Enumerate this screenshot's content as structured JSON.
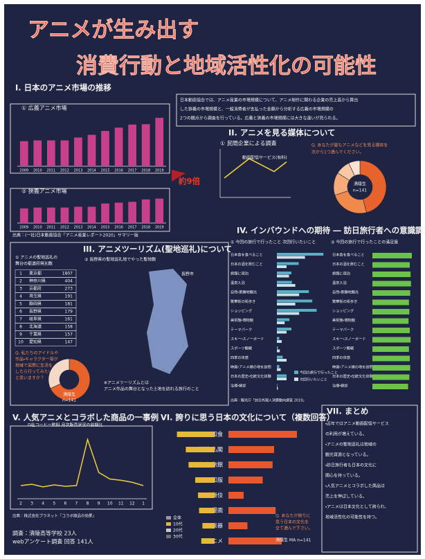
{
  "title": [
    "アニメが生み出す",
    "消費行動と地域活性化の可能性"
  ],
  "s1": {
    "heading": "I. 日本のアニメ市場の推移",
    "intro": [
      "日本動画協会では、アニメ産業の市場規模について、アニメ制作に関わる企業の売上高から算出",
      "した狭義の市場規模と、一般消費者が支払った金額から分析する広義の市場規模の",
      "2つの観点から調査を行っている。広義と狭義の市場規模には大きな違いが見られる。"
    ],
    "note": "約9倍",
    "source": "出典：(一社)日本動画協会「アニメ産業レポート2020」サマリー版",
    "years": [
      "2009",
      "2010",
      "2011",
      "2012",
      "2013",
      "2014",
      "2015",
      "2016",
      "2017",
      "2018",
      "2019"
    ],
    "broad": {
      "title": "① 広義アニメ市場",
      "values": [
        13000,
        13400,
        13400,
        13400,
        14900,
        16300,
        18300,
        20000,
        21600,
        21800,
        25100
      ],
      "ylim": [
        0,
        28000
      ],
      "color": "#c9408a"
    },
    "narrow": {
      "title": "② 狭義アニメ市場",
      "values": [
        1800,
        1900,
        1900,
        1900,
        2000,
        2000,
        2400,
        2500,
        2600,
        2900,
        3000
      ],
      "ylim": [
        0,
        3400
      ],
      "color": "#c9408a"
    }
  },
  "s2": {
    "heading": "II. アニメを見る媒体について",
    "survey": "① 民間企業による調査",
    "series_name": "動画配信サービス(有料)",
    "line": [
      12,
      18,
      24,
      20,
      16,
      22
    ],
    "line_ylim": [
      0,
      30
    ],
    "question": [
      "Q. あなたが最もアニメなどを見る媒体を",
      "次から1つ選んでください。"
    ],
    "pie_label": [
      "清陵生",
      "n=141"
    ],
    "pie": [
      46,
      24,
      14,
      9,
      7
    ]
  },
  "s3": {
    "heading": "III. アニメツーリズム(聖地巡礼)について",
    "table_title": [
      "① アニメの聖地巡礼の",
      "舞台の都道府県別数"
    ],
    "table": [
      [
        "1",
        "東京都",
        "1807"
      ],
      [
        "2",
        "神奈川県",
        "404"
      ],
      [
        "3",
        "京都府",
        "273"
      ],
      [
        "4",
        "埼玉県",
        "191"
      ],
      [
        "5",
        "静岡県",
        "181"
      ],
      [
        "6",
        "長野県",
        "179"
      ],
      [
        "7",
        "岐阜県",
        "161"
      ],
      [
        "8",
        "北海道",
        "158"
      ],
      [
        "9",
        "千葉県",
        "157"
      ],
      [
        "10",
        "愛知県",
        "147"
      ]
    ],
    "map_title": "② 長野県の聖地巡礼地でやった聖地数",
    "map_place": "長野市",
    "question": [
      "Q. 私たちのアイドルや",
      "作品・キャラクター等が",
      "地域で実際に生活を",
      "したら行ってみたい",
      "と思いますか？"
    ],
    "pie_label": [
      "清陵生",
      "n=141"
    ],
    "pie": [
      68,
      32
    ],
    "footnote": [
      "※アニメツーリズムとは",
      "アニメ作品の舞台となった土地を訪れる旅行のこと"
    ]
  },
  "s4": {
    "heading": "IV. インバウンドへの期待 ― 訪日旅行者への意識調査",
    "chart1_title": "① 今回の旅行で行ったこと 次回行いたいこと",
    "chart2_title": "② 今回の旅行で行ったことの満足度",
    "categories": [
      "日本食を食べること",
      "日本の酒を飲むこと",
      "旅館に宿泊",
      "温泉入浴",
      "自然・景勝地観光",
      "繁華街の街歩き",
      "ショッピング",
      "美術館・博物館",
      "テーマパーク",
      "スキー・スノーボード",
      "スポーツ観戦",
      "四季の体感",
      "映画・アニメ縁の地を訪問",
      "日本の歴史・伝統文化体験",
      "治療・健診"
    ],
    "series": [
      {
        "name": "今回の旅行で行ったこと",
        "color": "#5aaec6",
        "values": [
          96,
          45,
          30,
          31,
          66,
          73,
          82,
          26,
          30,
          5,
          2,
          12,
          5,
          20,
          1
        ]
      },
      {
        "name": "次回行いたいこと",
        "color": "#c8e2ea",
        "values": [
          58,
          20,
          25,
          38,
          46,
          38,
          46,
          16,
          20,
          10,
          6,
          20,
          8,
          20,
          2
        ]
      }
    ],
    "xlim": [
      0,
      100
    ],
    "satisfaction": [
      95,
      90,
      92,
      93,
      91,
      88,
      89,
      87,
      90,
      92,
      88,
      90,
      91,
      89,
      86
    ],
    "sat_color": "#6cc24a",
    "source": "出典：観光庁「訪日外国人消費動向調査 2019」"
  },
  "s5": {
    "heading": "V. 人気アニメとコラボした商品の一事例",
    "subtitle": "D社コーヒー飲料 月次販売状況の前期比",
    "months": [
      "2",
      "3",
      "4",
      "5",
      "6",
      "7",
      "8",
      "9",
      "10",
      "11",
      "12",
      "1"
    ],
    "values": [
      100,
      102,
      98,
      101,
      99,
      100,
      170,
      120,
      110,
      108,
      105,
      100
    ],
    "ylim": [
      80,
      180
    ],
    "source": "出典：株式会社プラネット「コラボ商品の効果」",
    "footer": [
      "調査：清陵高等学校 23人",
      "webアンケート調査 回答 141人"
    ]
  },
  "s6": {
    "heading": "VI. 誇りに思う日本の文化について（複数回答）",
    "categories": [
      "和食",
      "神社・仏閣",
      "温泉・旅館",
      "和服",
      "歌舞伎",
      "漫画",
      "和楽器",
      "アニメ"
    ],
    "public": [
      68,
      52,
      47,
      35,
      30,
      28,
      22,
      24
    ],
    "public_color": "#e6b83a",
    "students": [
      90,
      60,
      58,
      45,
      20,
      62,
      25,
      70
    ],
    "students_color": "#e8582c",
    "xlim": [
      0,
      100
    ],
    "legend": [
      "全体",
      "10代",
      "20代",
      "30代"
    ],
    "question": [
      "Q. あなたが誇りに",
      "思う日本の文化を",
      "全て選んで下さい。"
    ],
    "sample": "清陵生 MA n=141"
  },
  "s7": {
    "heading": "VII. まとめ",
    "lines": [
      "・近年ではアニメ動画配信サービス",
      "の利用が増えている。",
      "・アニメの聖地巡礼は地域の",
      "観光資源となっている。",
      "・訪日旅行者も日本の文化に",
      "関心を持っている。",
      "・人気アニメとコラボした商品は",
      "売上を伸ばしている。",
      "・アニメは日本文化として誇られ、",
      "地域活性化の可能性を持つ。"
    ]
  }
}
